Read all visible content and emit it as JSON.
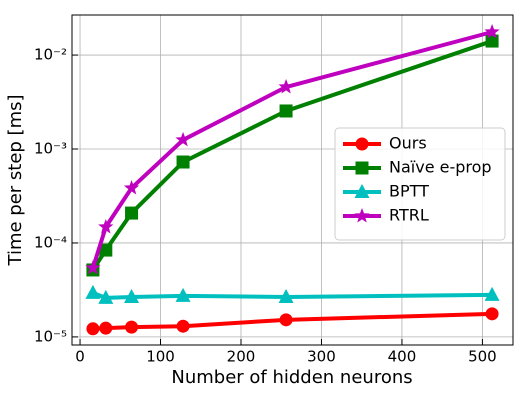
{
  "chart_data": {
    "type": "line",
    "x_label": "Number of hidden neurons",
    "y_label": "Time per step [ms]",
    "x": [
      16,
      32,
      64,
      128,
      256,
      512
    ],
    "series": [
      {
        "name": "Ours",
        "color": "#ff0000",
        "marker": "circle",
        "values": [
          1.22e-05,
          1.24e-05,
          1.27e-05,
          1.3e-05,
          1.52e-05,
          1.76e-05
        ]
      },
      {
        "name": "Naïve e-prop",
        "color": "#008000",
        "marker": "square",
        "values": [
          5.16e-05,
          8.4e-05,
          0.000208,
          0.000727,
          0.00254,
          0.0141
        ]
      },
      {
        "name": "BPTT",
        "color": "#00bfbf",
        "marker": "triangle",
        "values": [
          2.94e-05,
          2.6e-05,
          2.66e-05,
          2.73e-05,
          2.66e-05,
          2.8e-05
        ]
      },
      {
        "name": "RTRL",
        "color": "#bf00bf",
        "marker": "star",
        "values": [
          5.42e-05,
          0.000148,
          0.000384,
          0.00125,
          0.00457,
          0.0176
        ]
      }
    ],
    "xlim": [
      -10,
      538
    ],
    "xticks": [
      0,
      100,
      200,
      300,
      400,
      500
    ],
    "ylim": [
      8.2e-06,
      0.0267
    ],
    "log_y": true,
    "yticks": [
      {
        "value": 1e-05,
        "label": "10⁻⁵"
      },
      {
        "value": 0.0001,
        "label": "10⁻⁴"
      },
      {
        "value": 0.001,
        "label": "10⁻³"
      },
      {
        "value": 0.01,
        "label": "10⁻²"
      }
    ],
    "grid": true,
    "legend_position": "right"
  }
}
